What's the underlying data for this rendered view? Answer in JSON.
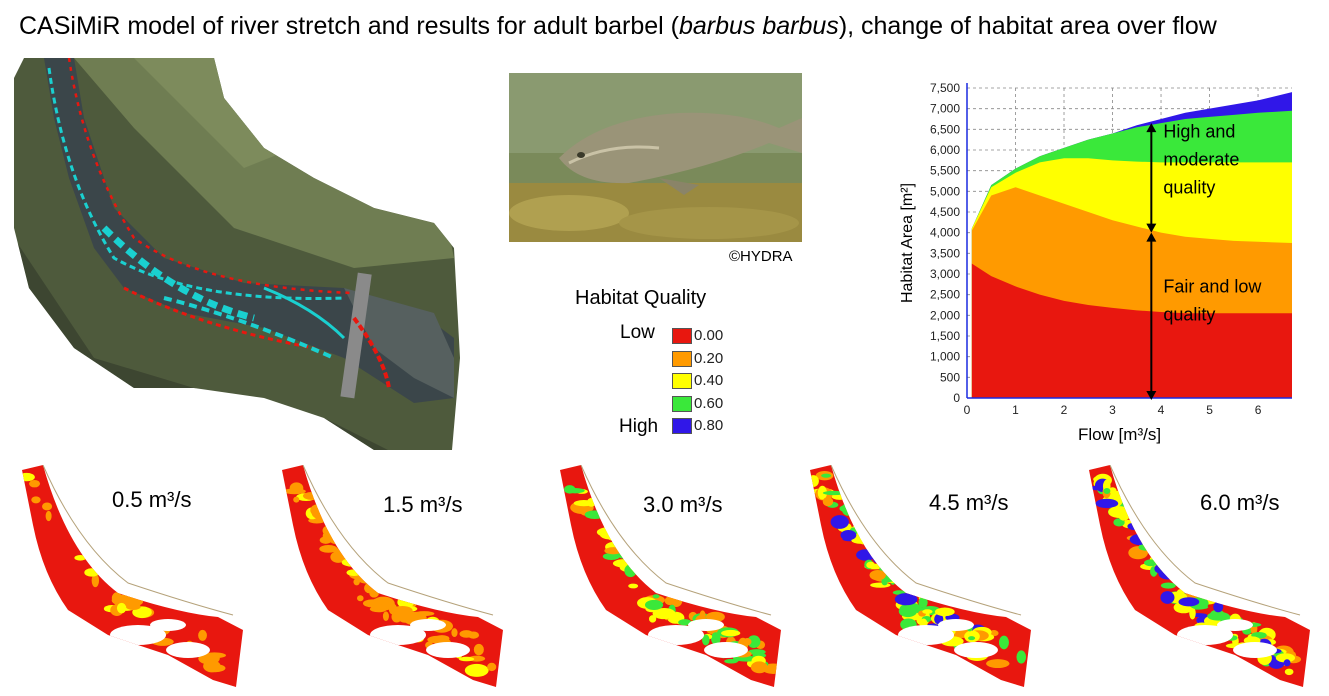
{
  "title": {
    "pre": "CASiMiR model of river stretch and results for adult barbel (",
    "species": "barbus barbus",
    "post": "), change of habitat area over flow"
  },
  "photo_credit": "©HYDRA",
  "legend": {
    "title": "Habitat Quality",
    "low_label": "Low",
    "high_label": "High",
    "items": [
      {
        "value": "0.00",
        "color": "#e8170f"
      },
      {
        "value": "0.20",
        "color": "#ff9a00"
      },
      {
        "value": "0.40",
        "color": "#ffff00"
      },
      {
        "value": "0.60",
        "color": "#3ae83a"
      },
      {
        "value": "0.80",
        "color": "#3017e8"
      }
    ]
  },
  "flow_maps": [
    {
      "label": "0.5 m³/s",
      "quality_mix": {
        "red": 0.75,
        "orange": 0.2,
        "yellow": 0.05
      }
    },
    {
      "label": "1.5 m³/s",
      "quality_mix": {
        "red": 0.55,
        "orange": 0.35,
        "yellow": 0.1
      }
    },
    {
      "label": "3.0 m³/s",
      "quality_mix": {
        "red": 0.45,
        "orange": 0.2,
        "yellow": 0.2,
        "green": 0.15
      }
    },
    {
      "label": "4.5 m³/s",
      "quality_mix": {
        "red": 0.35,
        "orange": 0.15,
        "yellow": 0.25,
        "green": 0.2,
        "blue": 0.05
      }
    },
    {
      "label": "6.0 m³/s",
      "quality_mix": {
        "red": 0.3,
        "orange": 0.1,
        "yellow": 0.25,
        "green": 0.2,
        "blue": 0.15
      }
    }
  ],
  "chart_data": {
    "type": "area",
    "xlabel": "Flow [m³/s]",
    "ylabel": "Habitat Area [m²]",
    "xlim": [
      0,
      6.7
    ],
    "ylim": [
      0,
      7500
    ],
    "xticks": [
      "0",
      "1",
      "2",
      "3",
      "4",
      "5",
      "6"
    ],
    "yticks": [
      "0",
      "500",
      "1,000",
      "1,500",
      "2,000",
      "2,500",
      "3,000",
      "3,500",
      "4,000",
      "4,500",
      "5,000",
      "5,500",
      "6,000",
      "6,500",
      "7,000",
      "7,500"
    ],
    "grid": true,
    "x": [
      0.1,
      0.5,
      1.0,
      1.5,
      2.0,
      2.5,
      3.0,
      3.5,
      4.0,
      4.5,
      5.0,
      5.5,
      6.0,
      6.7
    ],
    "series": [
      {
        "color": "#e8170f",
        "cumulative_top": [
          3250,
          2950,
          2700,
          2500,
          2350,
          2250,
          2180,
          2120,
          2080,
          2050,
          2050,
          2050,
          2050,
          2050
        ]
      },
      {
        "color": "#ff9a00",
        "cumulative_top": [
          4050,
          4900,
          5100,
          4900,
          4700,
          4500,
          4300,
          4150,
          4000,
          3900,
          3850,
          3800,
          3780,
          3750
        ]
      },
      {
        "color": "#ffff00",
        "cumulative_top": [
          4100,
          5100,
          5450,
          5700,
          5800,
          5800,
          5750,
          5720,
          5700,
          5700,
          5700,
          5700,
          5700,
          5700
        ]
      },
      {
        "color": "#3ae83a",
        "cumulative_top": [
          4100,
          5150,
          5550,
          5850,
          6050,
          6250,
          6400,
          6550,
          6650,
          6750,
          6800,
          6850,
          6900,
          6950
        ]
      },
      {
        "color": "#3017e8",
        "cumulative_top": [
          4100,
          5150,
          5550,
          5850,
          6050,
          6250,
          6400,
          6600,
          6750,
          6900,
          7000,
          7100,
          7200,
          7400
        ]
      }
    ],
    "annotations": [
      {
        "text_lines": [
          "High and",
          "moderate",
          "quality"
        ]
      },
      {
        "text_lines": [
          "Fair and low",
          "quality"
        ]
      }
    ]
  }
}
